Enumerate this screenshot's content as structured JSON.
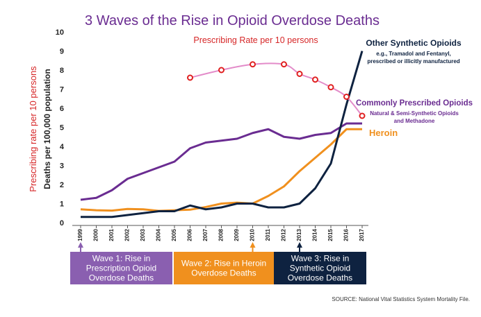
{
  "chart_data": {
    "type": "line",
    "title": "3 Waves of the Rise in Opioid Overdose Deaths",
    "ylabel": "Deaths per 100,000 population",
    "ylabel_secondary": "Prescribing rate per 10 persons",
    "ylim": [
      0,
      10
    ],
    "yticks": [
      "0",
      "1",
      "2",
      "3",
      "4",
      "5",
      "6",
      "7",
      "8",
      "9",
      "10"
    ],
    "categories": [
      "1999",
      "2000",
      "2001",
      "2002",
      "2003",
      "2004",
      "2005",
      "2006",
      "2007",
      "2008",
      "2009",
      "2010",
      "2011",
      "2012",
      "2013",
      "2014",
      "2015",
      "2016",
      "2017"
    ],
    "series": [
      {
        "name": "Commonly Prescribed Opioids",
        "color": "#6a2c91",
        "values": [
          1.2,
          1.3,
          1.7,
          2.3,
          2.6,
          2.9,
          3.2,
          3.9,
          4.2,
          4.3,
          4.4,
          4.7,
          4.9,
          4.5,
          4.4,
          4.6,
          4.7,
          5.2,
          5.2
        ]
      },
      {
        "name": "Heroin",
        "color": "#f0901e",
        "values": [
          0.7,
          0.65,
          0.63,
          0.72,
          0.7,
          0.62,
          0.65,
          0.68,
          0.82,
          1.0,
          1.05,
          1.0,
          1.4,
          1.9,
          2.7,
          3.4,
          4.1,
          4.9,
          4.9
        ]
      },
      {
        "name": "Other Synthetic Opioids",
        "color": "#0e2240",
        "values": [
          0.3,
          0.3,
          0.3,
          0.4,
          0.5,
          0.6,
          0.6,
          0.9,
          0.7,
          0.8,
          1.0,
          1.0,
          0.8,
          0.8,
          1.0,
          1.8,
          3.1,
          6.2,
          9.0
        ]
      }
    ],
    "prescribing_rate": {
      "name": "Prescribing Rate per 10 persons",
      "color": "#e38bc9",
      "marker_color": "#e02020",
      "x": [
        2006,
        2008,
        2010,
        2012,
        2013,
        2014,
        2015,
        2016,
        2017
      ],
      "values": [
        7.6,
        8.0,
        8.3,
        8.3,
        7.8,
        7.5,
        7.1,
        6.6,
        5.6
      ],
      "label": "Prescribing Rate per 10 persons"
    },
    "series_labels": {
      "synthetic_title": "Other Synthetic Opioids",
      "synthetic_sub1": "e.g., Tramadol and Fentanyl,",
      "synthetic_sub2": "prescribed or illicitly manufactured",
      "prescribed_title": "Commonly Prescribed Opioids",
      "prescribed_sub1": "Natural & Semi-Synthetic Opioids",
      "prescribed_sub2": "and Methadone",
      "heroin_title": "Heroin"
    },
    "waves": [
      {
        "year": 1999,
        "line1": "Wave 1: Rise in",
        "line2": "Prescription Opioid",
        "line3": "Overdose Deaths",
        "color": "#8a5fb0"
      },
      {
        "year": 2010,
        "line1": "Wave 2: Rise in Heroin",
        "line2": "Overdose Deaths",
        "line3": "",
        "color": "#f0901e"
      },
      {
        "year": 2013,
        "line1": "Wave 3: Rise in",
        "line2": "Synthetic Opioid",
        "line3": "Overdose Deaths",
        "color": "#0e2240"
      }
    ],
    "source": "SOURCE: National Vital Statistics System Mortality File."
  },
  "colors": {
    "title": "#6a2c91",
    "secondary_label": "#d62728",
    "axis": "#333333"
  }
}
